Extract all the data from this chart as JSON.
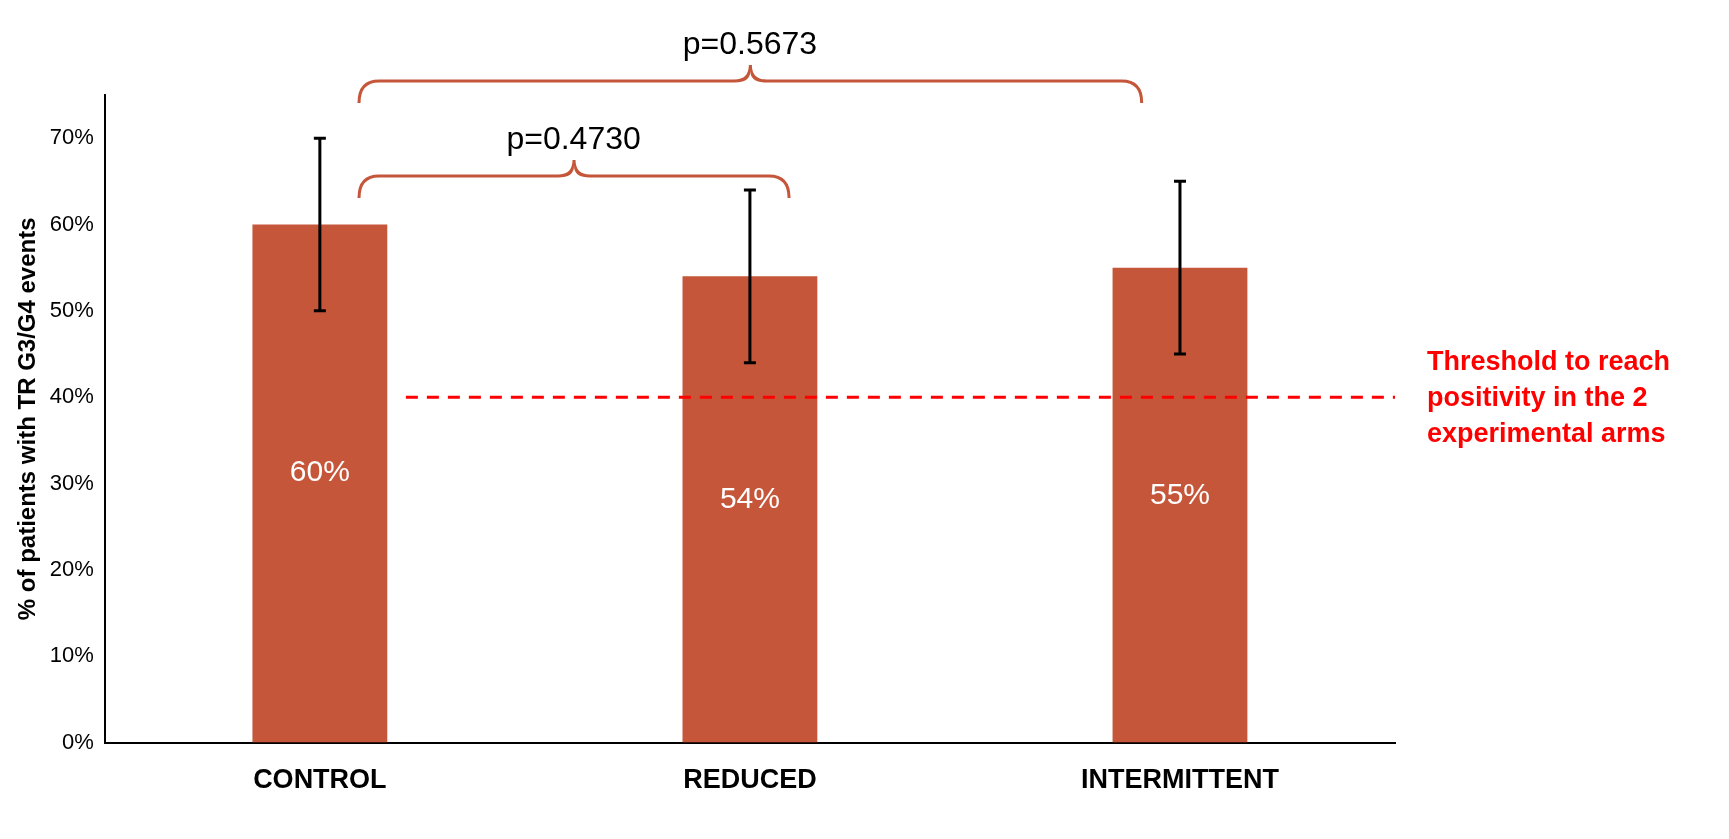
{
  "chart_data": {
    "type": "bar",
    "ylabel": "% of patients with TR G3/G4 events",
    "categories": [
      "CONTROL",
      "REDUCED",
      "INTERMITTENT"
    ],
    "values": [
      60,
      54,
      55
    ],
    "color": "#c5563a",
    "errors": [
      [
        50,
        70
      ],
      [
        44,
        64
      ],
      [
        45,
        65
      ]
    ],
    "value_labels": [
      "60%",
      "54%",
      "55%"
    ],
    "ylim": [
      0,
      75
    ],
    "yticks": [
      {
        "value": 0,
        "label": "0%"
      },
      {
        "value": 10,
        "label": "10%"
      },
      {
        "value": 20,
        "label": "20%"
      },
      {
        "value": 30,
        "label": "30%"
      },
      {
        "value": 40,
        "label": "40%"
      },
      {
        "value": 50,
        "label": "50%"
      },
      {
        "value": 60,
        "label": "60%"
      },
      {
        "value": 70,
        "label": "70%"
      }
    ],
    "ref_lines": [
      {
        "axis": "y",
        "value": 40,
        "label": "Threshold to reach positivity in the 2 experimental arms",
        "color": "#ff0000",
        "line_style": "dashed"
      }
    ],
    "annotations": [
      "p=0.4730",
      "p=0.5673"
    ],
    "grid": false,
    "legend": false
  }
}
